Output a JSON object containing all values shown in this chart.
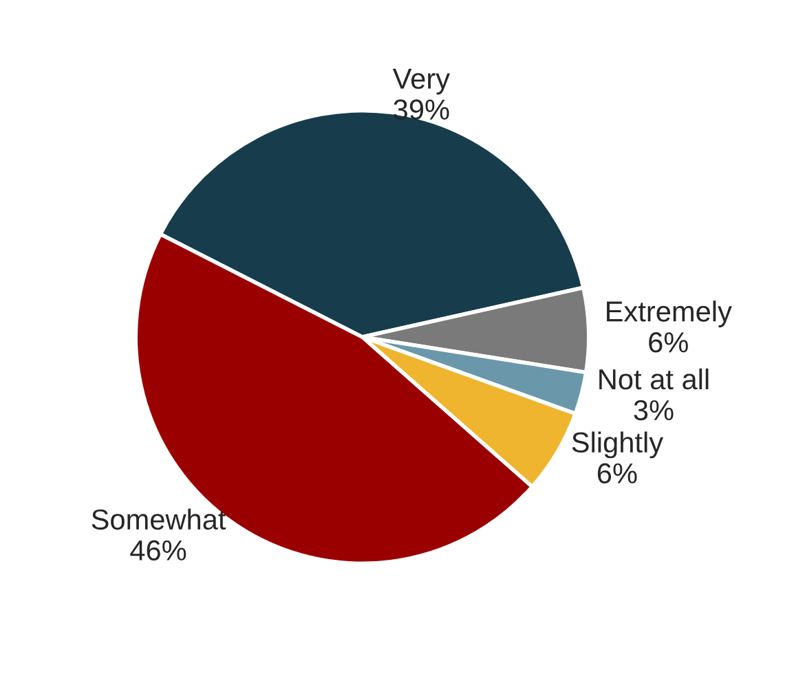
{
  "chart_data": {
    "type": "pie",
    "categories": [
      "Very",
      "Extremely",
      "Not at all",
      "Slightly",
      "Somewhat"
    ],
    "values": [
      39,
      6,
      3,
      6,
      46
    ],
    "value_labels": [
      "39%",
      "6%",
      "3%",
      "6%",
      "46%"
    ],
    "colors": [
      "#173d4d",
      "#7a7a7a",
      "#6a98aa",
      "#f0b52e",
      "#9b0000"
    ]
  }
}
